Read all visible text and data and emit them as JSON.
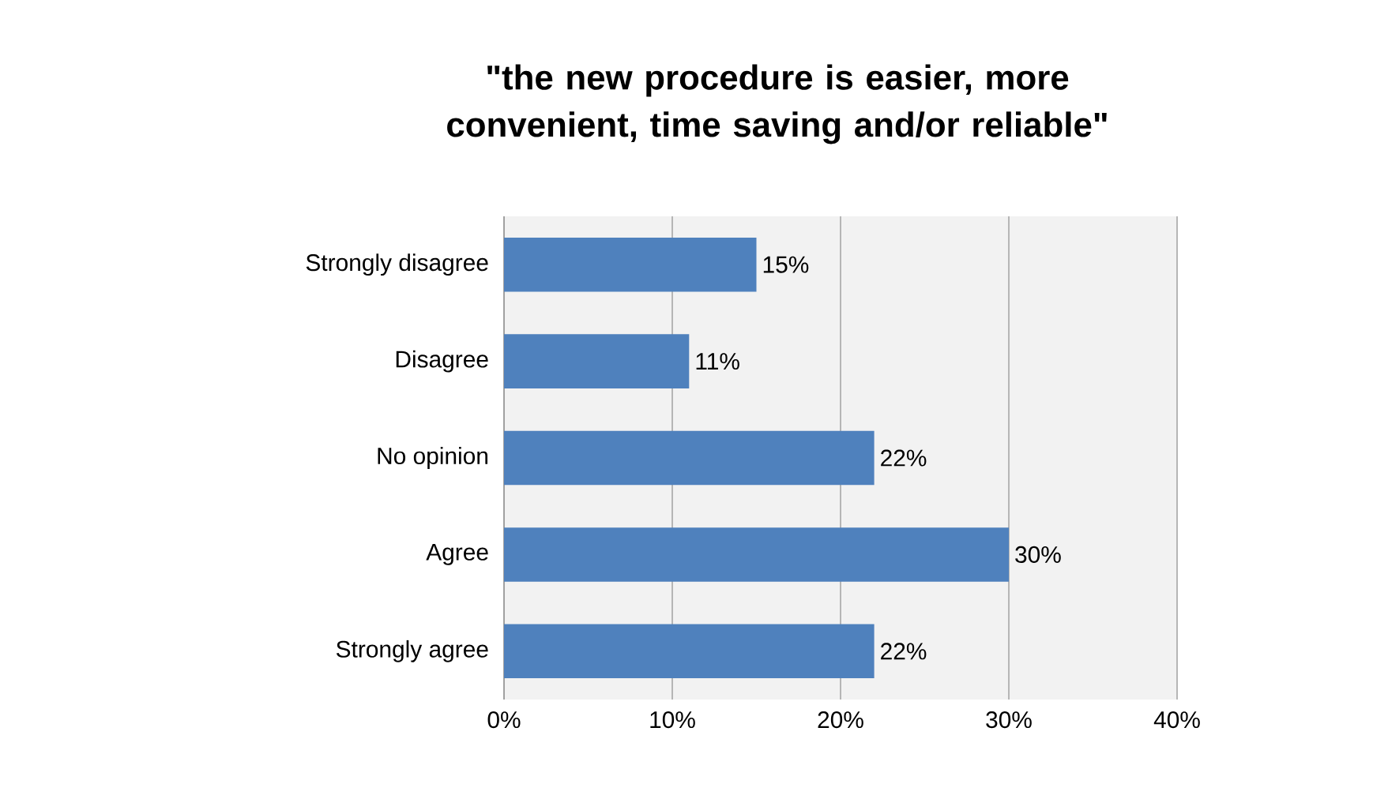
{
  "chart_data": {
    "type": "bar",
    "orientation": "horizontal",
    "title": "\"the new procedure is easier, more convenient, time saving and/or reliable\"",
    "categories": [
      "Strongly disagree",
      "Disagree",
      "No opinion",
      "Agree",
      "Strongly agree"
    ],
    "values": [
      15,
      11,
      22,
      30,
      22
    ],
    "value_labels": [
      "15%",
      "11%",
      "22%",
      "30%",
      "22%"
    ],
    "color": "#4f81bd",
    "xlim": [
      0,
      40
    ],
    "xticks": [
      {
        "value": 0,
        "label": "0%"
      },
      {
        "value": 10,
        "label": "10%"
      },
      {
        "value": 20,
        "label": "20%"
      },
      {
        "value": 30,
        "label": "30%"
      },
      {
        "value": 40,
        "label": "40%"
      }
    ],
    "grid": "x"
  }
}
